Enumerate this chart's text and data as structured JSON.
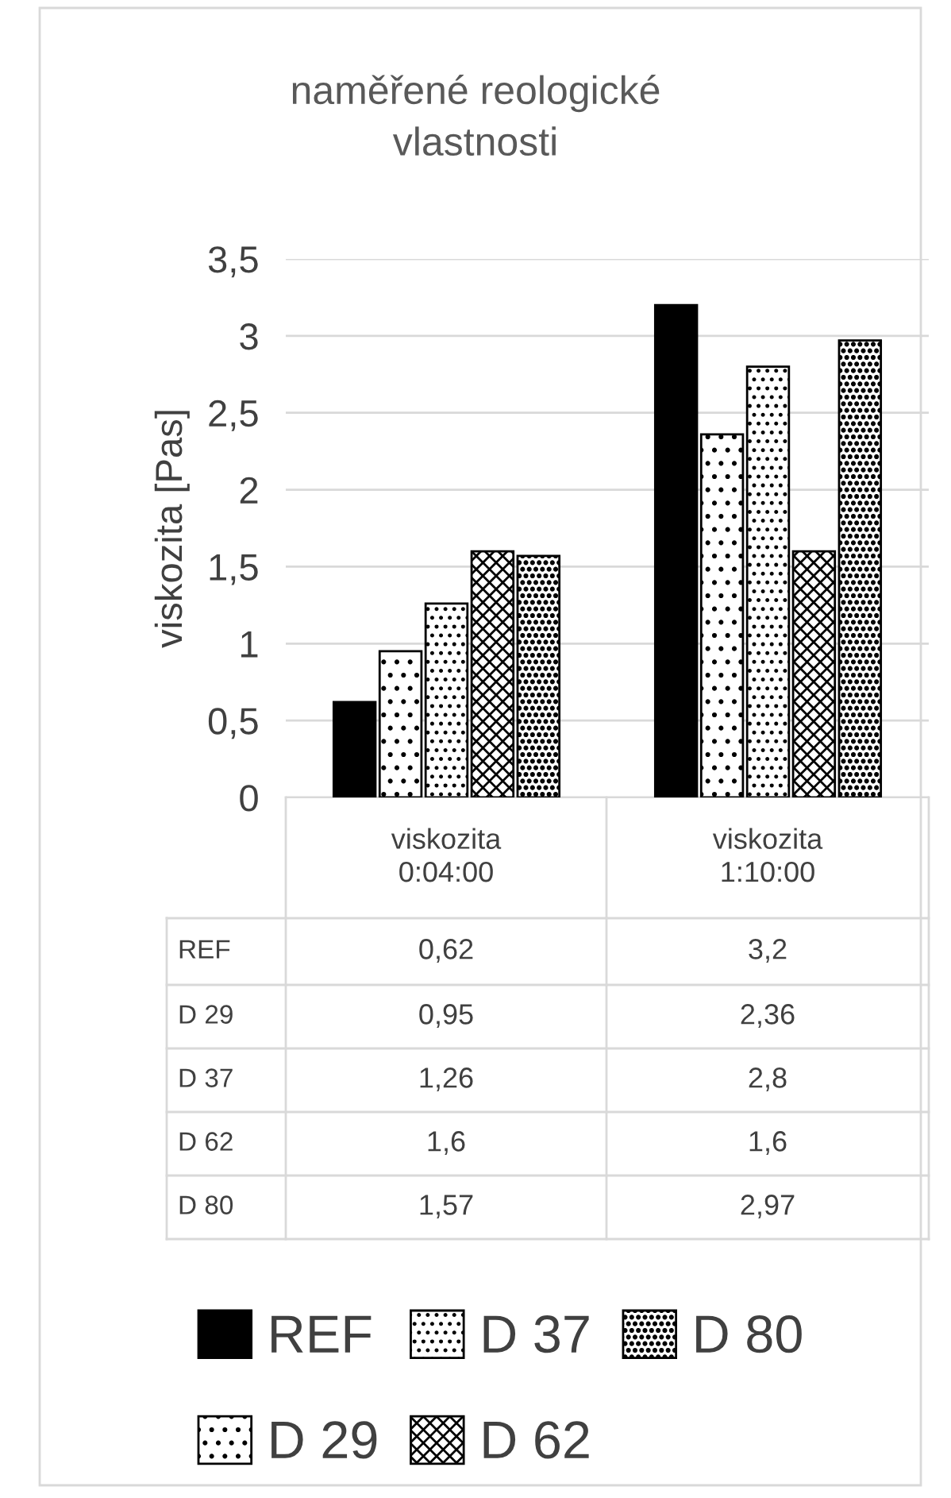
{
  "chart_data": {
    "type": "bar",
    "title": "naměřené reologické\nvlastnosti",
    "ylabel": "viskozita [Pas]",
    "categories": [
      "viskozita\n0:04:00",
      "viskozita\n1:10:00"
    ],
    "series": [
      {
        "name": "REF",
        "color": "#000000",
        "values": [
          0.62,
          3.2
        ],
        "value_labels": [
          "0,62",
          "3,2"
        ]
      },
      {
        "name": "D 29",
        "color": "#000000",
        "values": [
          0.95,
          2.36
        ],
        "value_labels": [
          "0,95",
          "2,36"
        ]
      },
      {
        "name": "D 37",
        "color": "#000000",
        "values": [
          1.26,
          2.8
        ],
        "value_labels": [
          "1,26",
          "2,8"
        ]
      },
      {
        "name": "D 62",
        "color": "#000000",
        "values": [
          1.6,
          1.6
        ],
        "value_labels": [
          "1,6",
          "1,6"
        ]
      },
      {
        "name": "D 80",
        "color": "#000000",
        "values": [
          1.57,
          2.97
        ],
        "value_labels": [
          "1,57",
          "2,97"
        ]
      }
    ],
    "ylim": [
      0,
      3.5
    ],
    "yticks": [
      0,
      {
        "value": 0.5,
        "label": "0,5"
      },
      1,
      {
        "value": 1.5,
        "label": "1,5"
      },
      2,
      {
        "value": 2.5,
        "label": "2,5"
      },
      3,
      {
        "value": 3.5,
        "label": "3,5"
      }
    ],
    "grid": "y",
    "legend": "bottom"
  }
}
